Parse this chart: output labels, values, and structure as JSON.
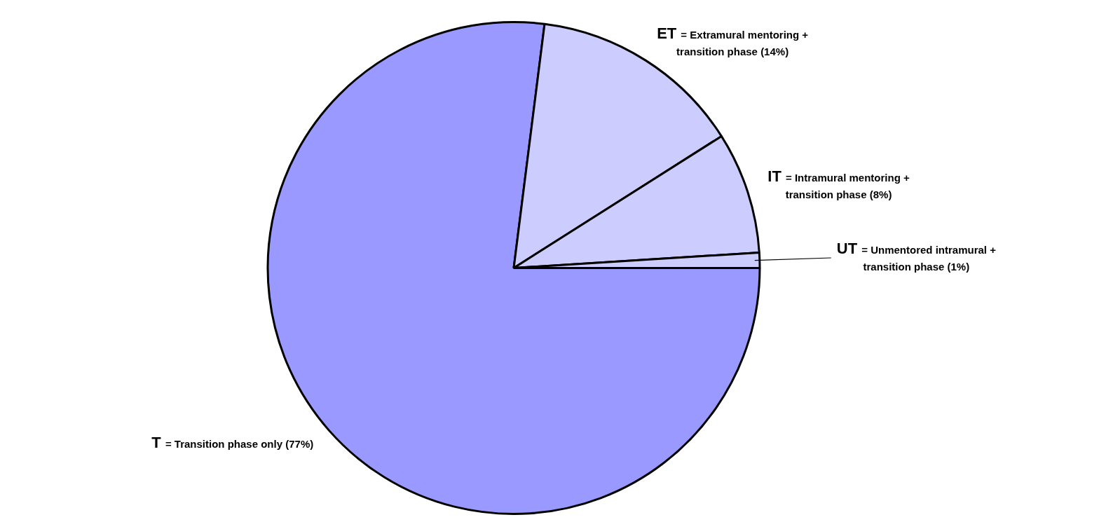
{
  "chart_data": {
    "type": "pie",
    "categories": [
      "T = Transition phase only (77%)",
      "ET = Extramural mentoring + transition phase (14%)",
      "IT = Intramural mentoring + transition phase (8%)",
      "UT = Unmentored intramural + transition phase (1%)"
    ],
    "values": [
      77,
      14,
      8,
      1
    ],
    "colors": [
      "#9999ff",
      "#ccccff",
      "#ccccff",
      "#ccccff"
    ],
    "legend": false
  }
}
